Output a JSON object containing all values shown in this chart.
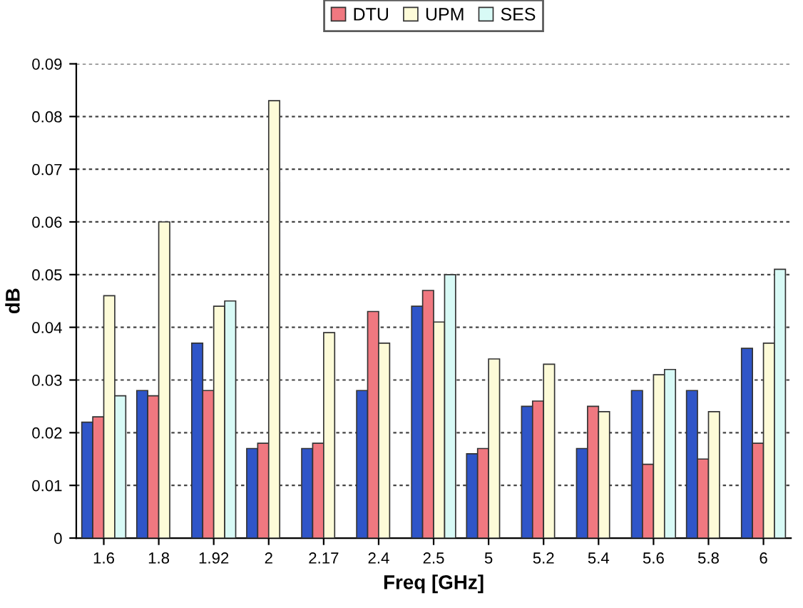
{
  "chart_data": {
    "type": "bar",
    "xlabel": "Freq [GHz]",
    "ylabel": "dB",
    "categories": [
      "1.6",
      "1.8",
      "1.92",
      "2",
      "2.17",
      "2.4",
      "2.5",
      "5",
      "5.2",
      "5.4",
      "5.6",
      "5.8",
      "6"
    ],
    "series": [
      {
        "color": "#2f55c8",
        "values": [
          0.022,
          0.028,
          0.037,
          0.017,
          0.017,
          0.028,
          0.044,
          0.016,
          0.025,
          0.017,
          0.028,
          0.028,
          0.036
        ]
      },
      {
        "name": "DTU",
        "color": "#f07880",
        "values": [
          0.023,
          0.027,
          0.028,
          0.018,
          0.018,
          0.043,
          0.047,
          0.017,
          0.026,
          0.025,
          0.014,
          0.015,
          0.018
        ]
      },
      {
        "name": "UPM",
        "color": "#fdfbd8",
        "values": [
          0.046,
          0.06,
          0.044,
          0.083,
          0.039,
          0.037,
          0.041,
          0.034,
          0.033,
          0.024,
          0.031,
          0.024,
          0.037
        ]
      },
      {
        "name": "SES",
        "color": "#d8faf6",
        "values": [
          0.027,
          null,
          0.045,
          null,
          null,
          null,
          0.05,
          null,
          null,
          null,
          0.032,
          null,
          0.051
        ]
      }
    ],
    "ylim": [
      0,
      0.09
    ],
    "yticks": [
      {
        "value": 0,
        "label": "0"
      },
      0.01,
      0.02,
      0.03,
      0.04,
      0.05,
      0.06,
      0.07,
      0.08,
      0.09
    ],
    "grid": "y",
    "legend": "top"
  }
}
